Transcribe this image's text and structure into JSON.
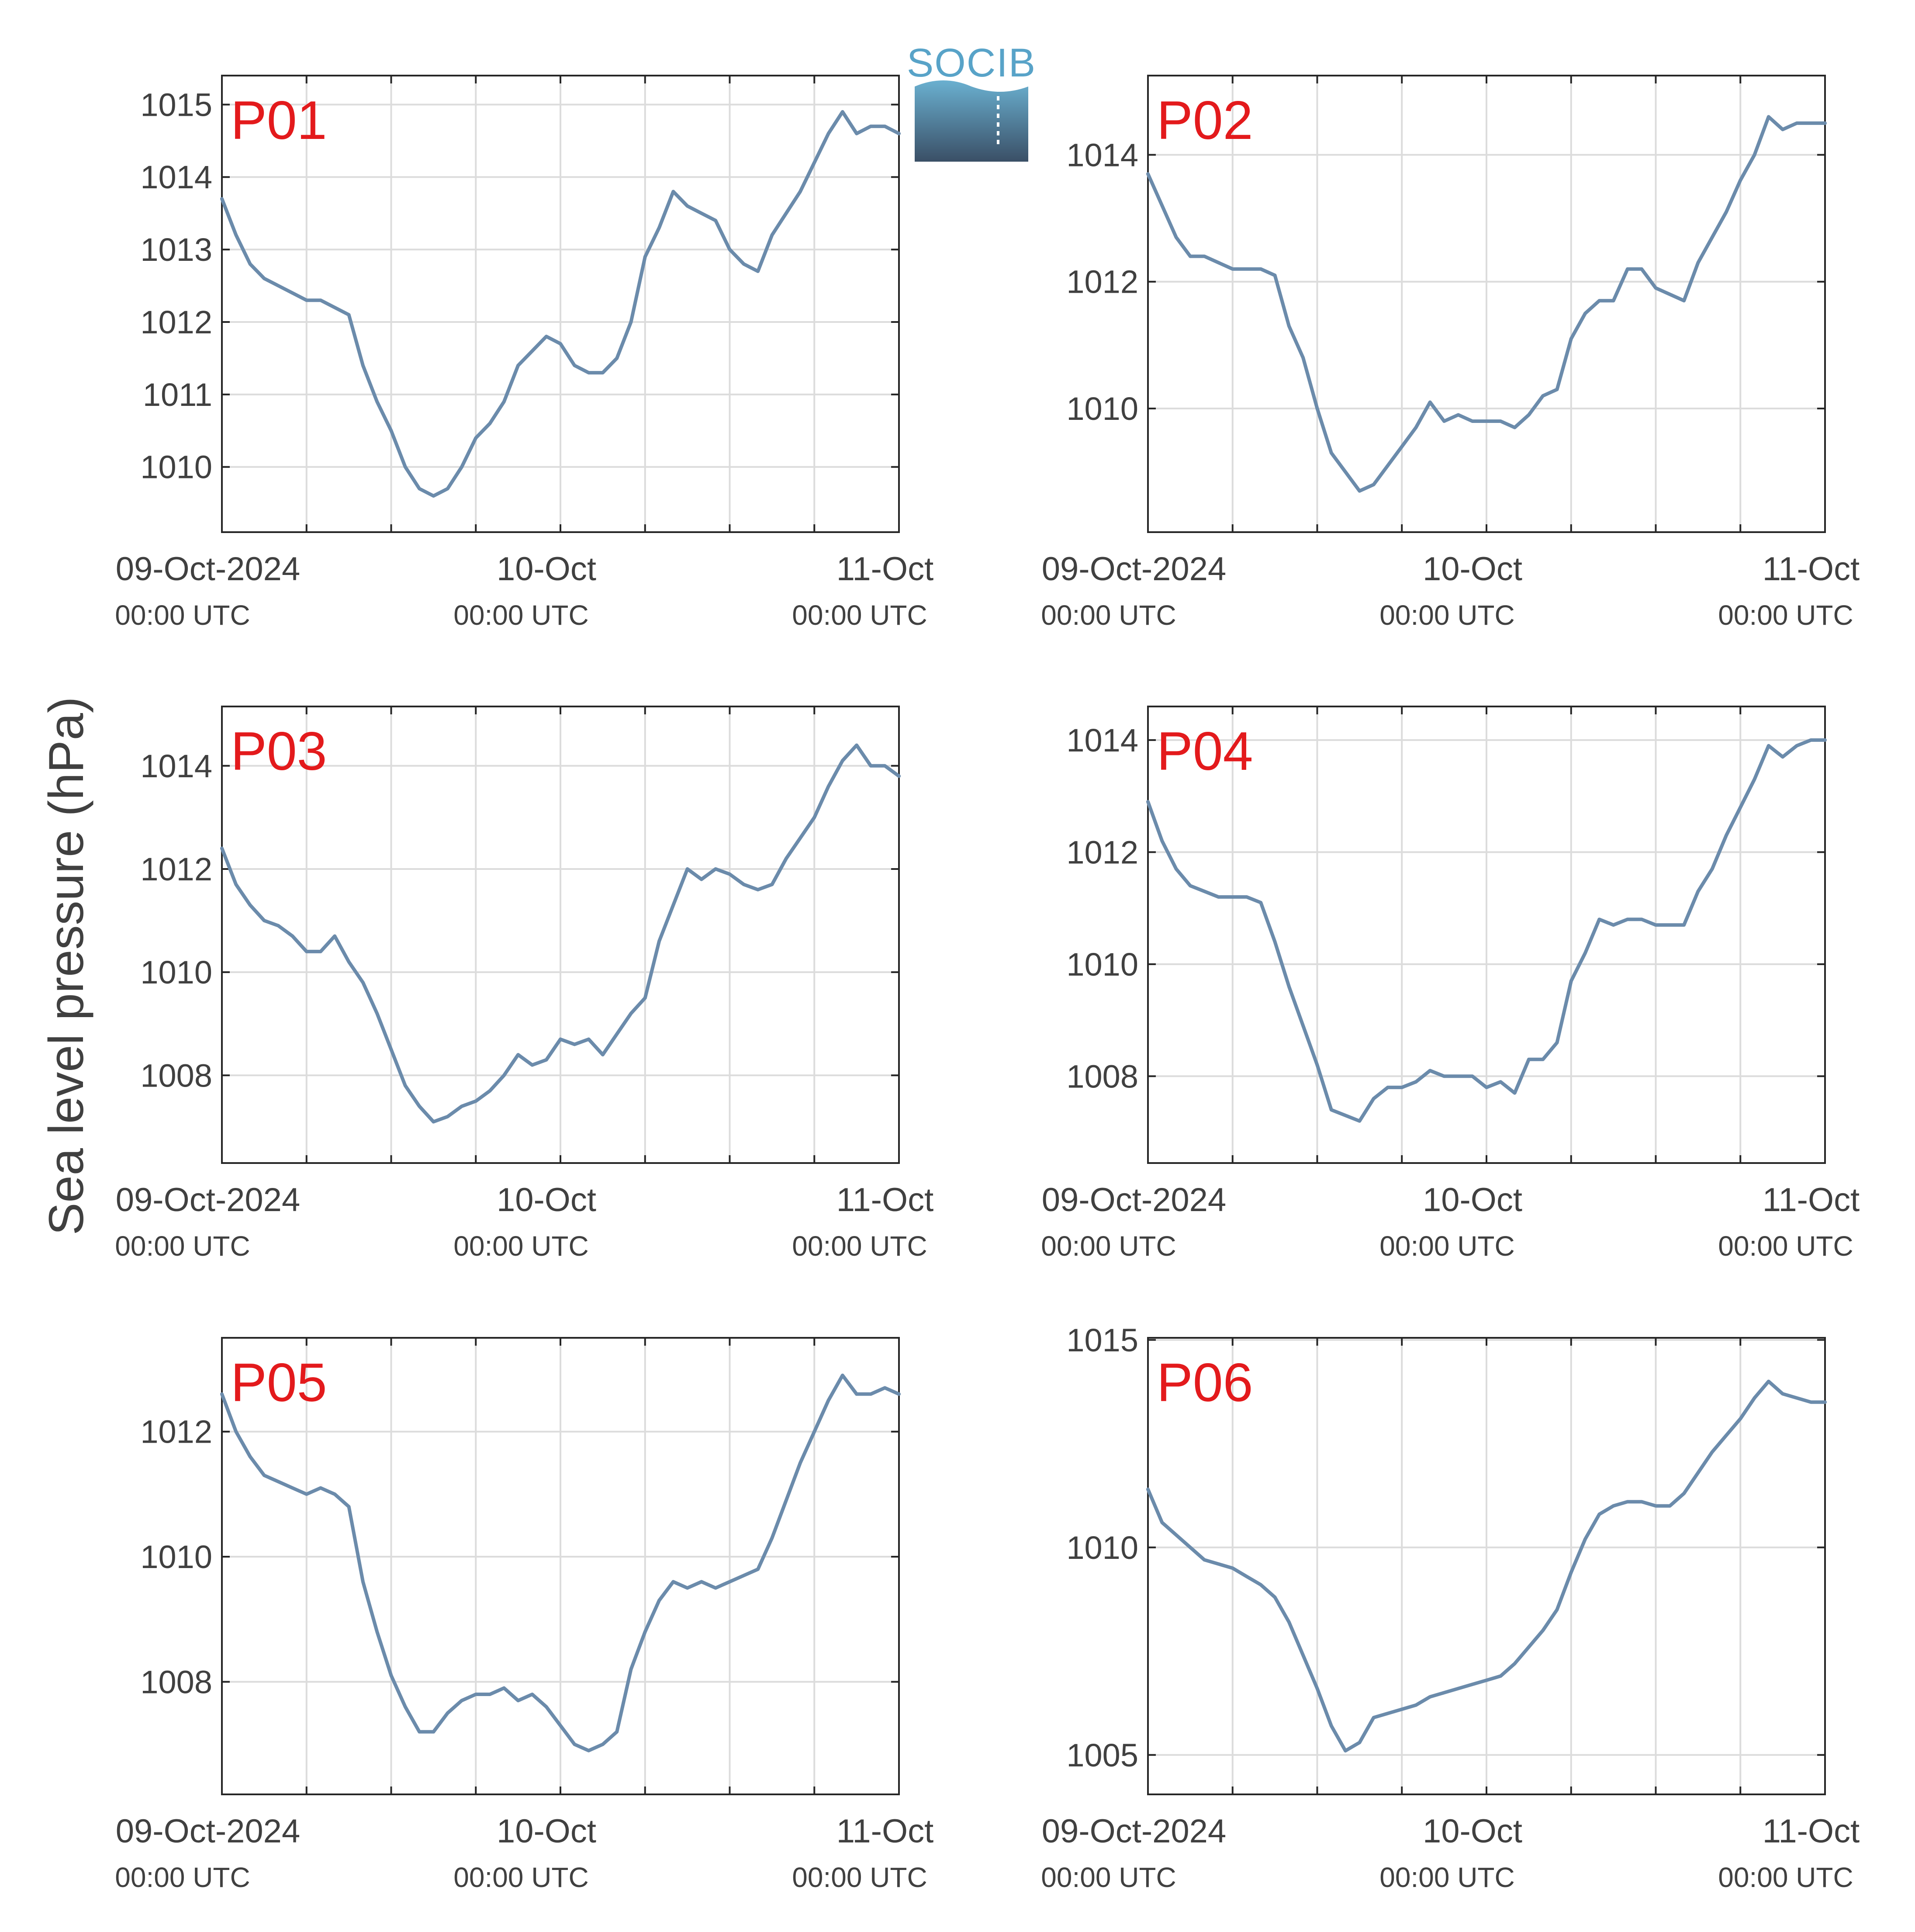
{
  "ylabel": "Sea level pressure (hPa)",
  "logo": {
    "text": "SOCIB",
    "colors": {
      "text": "#58a3c8",
      "wave_top": "#6ab0d0",
      "wave_bottom": "#3a4f66"
    }
  },
  "colors": {
    "series": "#6b8bab",
    "panel_label": "#e31a1c",
    "grid": "#dcdcdc",
    "axis": "#262626",
    "text": "#404040"
  },
  "x_ticks": [
    {
      "main": "09-Oct-2024",
      "sub": "00:00 UTC"
    },
    {
      "main": "10-Oct",
      "sub": "00:00 UTC"
    },
    {
      "main": "11-Oct",
      "sub": "00:00 UTC"
    }
  ],
  "chart_data": [
    {
      "type": "line",
      "label": "P01",
      "xlim": [
        0,
        48
      ],
      "ylim": [
        1009.1,
        1015.4
      ],
      "yticks": [
        1010,
        1011,
        1012,
        1013,
        1014,
        1015
      ],
      "x": [
        0,
        1,
        2,
        3,
        4,
        5,
        6,
        7,
        8,
        9,
        10,
        11,
        12,
        13,
        14,
        15,
        16,
        17,
        18,
        19,
        20,
        21,
        22,
        23,
        24,
        25,
        26,
        27,
        28,
        29,
        30,
        31,
        32,
        33,
        34,
        35,
        36,
        37,
        38,
        39,
        40,
        41,
        42,
        43,
        44,
        45,
        46,
        47,
        48
      ],
      "values": [
        1013.7,
        1013.2,
        1012.8,
        1012.6,
        1012.5,
        1012.4,
        1012.3,
        1012.3,
        1012.2,
        1012.1,
        1011.4,
        1010.9,
        1010.5,
        1010.0,
        1009.7,
        1009.6,
        1009.7,
        1010.0,
        1010.4,
        1010.6,
        1010.9,
        1011.4,
        1011.6,
        1011.8,
        1011.7,
        1011.4,
        1011.3,
        1011.3,
        1011.5,
        1012.0,
        1012.9,
        1013.3,
        1013.8,
        1013.6,
        1013.5,
        1013.4,
        1013.0,
        1012.8,
        1012.7,
        1013.2,
        1013.5,
        1013.8,
        1014.2,
        1014.6,
        1014.9,
        1014.6,
        1014.7,
        1014.7,
        1014.6
      ]
    },
    {
      "type": "line",
      "label": "P02",
      "xlim": [
        0,
        48
      ],
      "ylim": [
        1008.05,
        1015.25
      ],
      "yticks": [
        1010,
        1012,
        1014
      ],
      "x": [
        0,
        1,
        2,
        3,
        4,
        5,
        6,
        7,
        8,
        9,
        10,
        11,
        12,
        13,
        14,
        15,
        16,
        17,
        18,
        19,
        20,
        21,
        22,
        23,
        24,
        25,
        26,
        27,
        28,
        29,
        30,
        31,
        32,
        33,
        34,
        35,
        36,
        37,
        38,
        39,
        40,
        41,
        42,
        43,
        44,
        45,
        46,
        47,
        48
      ],
      "values": [
        1013.7,
        1013.2,
        1012.7,
        1012.4,
        1012.4,
        1012.3,
        1012.2,
        1012.2,
        1012.2,
        1012.1,
        1011.3,
        1010.8,
        1010.0,
        1009.3,
        1009.0,
        1008.7,
        1008.8,
        1009.1,
        1009.4,
        1009.7,
        1010.1,
        1009.8,
        1009.9,
        1009.8,
        1009.8,
        1009.8,
        1009.7,
        1009.9,
        1010.2,
        1010.3,
        1011.1,
        1011.5,
        1011.7,
        1011.7,
        1012.2,
        1012.2,
        1011.9,
        1011.8,
        1011.7,
        1012.3,
        1012.7,
        1013.1,
        1013.6,
        1014.0,
        1014.6,
        1014.4,
        1014.5,
        1014.5,
        1014.5
      ]
    },
    {
      "type": "line",
      "label": "P03",
      "xlim": [
        0,
        48
      ],
      "ylim": [
        1006.3,
        1015.15
      ],
      "yticks": [
        1008,
        1010,
        1012,
        1014
      ],
      "x": [
        0,
        1,
        2,
        3,
        4,
        5,
        6,
        7,
        8,
        9,
        10,
        11,
        12,
        13,
        14,
        15,
        16,
        17,
        18,
        19,
        20,
        21,
        22,
        23,
        24,
        25,
        26,
        27,
        28,
        29,
        30,
        31,
        32,
        33,
        34,
        35,
        36,
        37,
        38,
        39,
        40,
        41,
        42,
        43,
        44,
        45,
        46,
        47,
        48
      ],
      "values": [
        1012.4,
        1011.7,
        1011.3,
        1011.0,
        1010.9,
        1010.7,
        1010.4,
        1010.4,
        1010.7,
        1010.2,
        1009.8,
        1009.2,
        1008.5,
        1007.8,
        1007.4,
        1007.1,
        1007.2,
        1007.4,
        1007.5,
        1007.7,
        1008.0,
        1008.4,
        1008.2,
        1008.3,
        1008.7,
        1008.6,
        1008.7,
        1008.4,
        1008.8,
        1009.2,
        1009.5,
        1010.6,
        1011.3,
        1012.0,
        1011.8,
        1012.0,
        1011.9,
        1011.7,
        1011.6,
        1011.7,
        1012.2,
        1012.6,
        1013.0,
        1013.6,
        1014.1,
        1014.4,
        1014.0,
        1014.0,
        1013.8
      ]
    },
    {
      "type": "line",
      "label": "P04",
      "xlim": [
        0,
        48
      ],
      "ylim": [
        1006.45,
        1014.6
      ],
      "yticks": [
        1008,
        1010,
        1012,
        1014
      ],
      "x": [
        0,
        1,
        2,
        3,
        4,
        5,
        6,
        7,
        8,
        9,
        10,
        11,
        12,
        13,
        14,
        15,
        16,
        17,
        18,
        19,
        20,
        21,
        22,
        23,
        24,
        25,
        26,
        27,
        28,
        29,
        30,
        31,
        32,
        33,
        34,
        35,
        36,
        37,
        38,
        39,
        40,
        41,
        42,
        43,
        44,
        45,
        46,
        47,
        48
      ],
      "values": [
        1012.9,
        1012.2,
        1011.7,
        1011.4,
        1011.3,
        1011.2,
        1011.2,
        1011.2,
        1011.1,
        1010.4,
        1009.6,
        1008.9,
        1008.2,
        1007.4,
        1007.3,
        1007.2,
        1007.6,
        1007.8,
        1007.8,
        1007.9,
        1008.1,
        1008.0,
        1008.0,
        1008.0,
        1007.8,
        1007.9,
        1007.7,
        1008.3,
        1008.3,
        1008.6,
        1009.7,
        1010.2,
        1010.8,
        1010.7,
        1010.8,
        1010.8,
        1010.7,
        1010.7,
        1010.7,
        1011.3,
        1011.7,
        1012.3,
        1012.8,
        1013.3,
        1013.9,
        1013.7,
        1013.9,
        1014.0,
        1014.0
      ]
    },
    {
      "type": "line",
      "label": "P05",
      "xlim": [
        0,
        48
      ],
      "ylim": [
        1006.2,
        1013.5
      ],
      "yticks": [
        1008,
        1010,
        1012
      ],
      "x": [
        0,
        1,
        2,
        3,
        4,
        5,
        6,
        7,
        8,
        9,
        10,
        11,
        12,
        13,
        14,
        15,
        16,
        17,
        18,
        19,
        20,
        21,
        22,
        23,
        24,
        25,
        26,
        27,
        28,
        29,
        30,
        31,
        32,
        33,
        34,
        35,
        36,
        37,
        38,
        39,
        40,
        41,
        42,
        43,
        44,
        45,
        46,
        47,
        48
      ],
      "values": [
        1012.6,
        1012.0,
        1011.6,
        1011.3,
        1011.2,
        1011.1,
        1011.0,
        1011.1,
        1011.0,
        1010.8,
        1009.6,
        1008.8,
        1008.1,
        1007.6,
        1007.2,
        1007.2,
        1007.5,
        1007.7,
        1007.8,
        1007.8,
        1007.9,
        1007.7,
        1007.8,
        1007.6,
        1007.3,
        1007.0,
        1006.9,
        1007.0,
        1007.2,
        1008.2,
        1008.8,
        1009.3,
        1009.6,
        1009.5,
        1009.6,
        1009.5,
        1009.6,
        1009.7,
        1009.8,
        1010.3,
        1010.9,
        1011.5,
        1012.0,
        1012.5,
        1012.9,
        1012.6,
        1012.6,
        1012.7,
        1012.6
      ]
    },
    {
      "type": "line",
      "label": "P06",
      "xlim": [
        0,
        48
      ],
      "ylim": [
        1004.05,
        1015.05
      ],
      "yticks": [
        1005,
        1010,
        1015
      ],
      "x": [
        0,
        1,
        2,
        3,
        4,
        5,
        6,
        7,
        8,
        9,
        10,
        11,
        12,
        13,
        14,
        15,
        16,
        17,
        18,
        19,
        20,
        21,
        22,
        23,
        24,
        25,
        26,
        27,
        28,
        29,
        30,
        31,
        32,
        33,
        34,
        35,
        36,
        37,
        38,
        39,
        40,
        41,
        42,
        43,
        44,
        45,
        46,
        47,
        48
      ],
      "values": [
        1011.4,
        1010.6,
        1010.3,
        1010.0,
        1009.7,
        1009.6,
        1009.5,
        1009.3,
        1009.1,
        1008.8,
        1008.2,
        1007.4,
        1006.6,
        1005.7,
        1005.1,
        1005.3,
        1005.9,
        1006.0,
        1006.1,
        1006.2,
        1006.4,
        1006.5,
        1006.6,
        1006.7,
        1006.8,
        1006.9,
        1007.2,
        1007.6,
        1008.0,
        1008.5,
        1009.4,
        1010.2,
        1010.8,
        1011.0,
        1011.1,
        1011.1,
        1011.0,
        1011.0,
        1011.3,
        1011.8,
        1012.3,
        1012.7,
        1013.1,
        1013.6,
        1014.0,
        1013.7,
        1013.6,
        1013.5,
        1013.5
      ]
    }
  ]
}
